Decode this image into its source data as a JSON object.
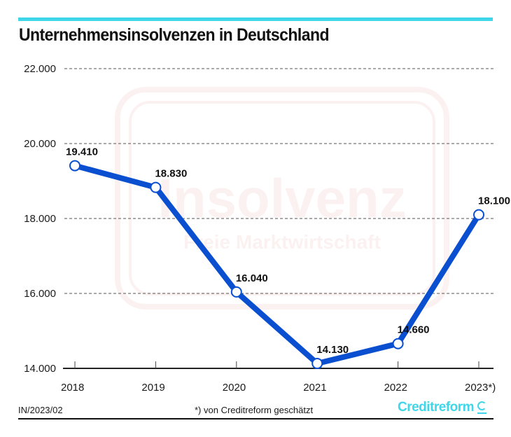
{
  "header": {
    "title": "Unternehmensinsolvenzen in Deutschland",
    "accent_color": "#3fd6ea"
  },
  "watermark": {
    "sign_text": "Insolvenz",
    "sign_subtext": "Freie Marktwirtschaft"
  },
  "chart_data": {
    "type": "line",
    "title": "Unternehmensinsolvenzen in Deutschland",
    "xlabel": "",
    "ylabel": "",
    "categories": [
      "2018",
      "2019",
      "2020",
      "2021",
      "2022",
      "2023*)"
    ],
    "series": [
      {
        "name": "Unternehmensinsolvenzen",
        "color": "#0a4fd0",
        "values": [
          19410,
          18830,
          16040,
          14130,
          14660,
          18100
        ],
        "labels": [
          "19.410",
          "18.830",
          "16.040",
          "14.130",
          "14.660",
          "18.100"
        ]
      }
    ],
    "ylim": [
      14000,
      22000
    ],
    "yticks": [
      14000,
      16000,
      18000,
      20000,
      22000
    ],
    "ytick_labels": [
      "14.000",
      "16.000",
      "18.000",
      "20.000",
      "22.000"
    ],
    "grid": true,
    "legend": "none"
  },
  "footer": {
    "code": "IN/2023/02",
    "note": "*) von Creditreform geschätzt",
    "logo_text": "Creditreform",
    "logo_icon": "creditreform-c-mark"
  }
}
